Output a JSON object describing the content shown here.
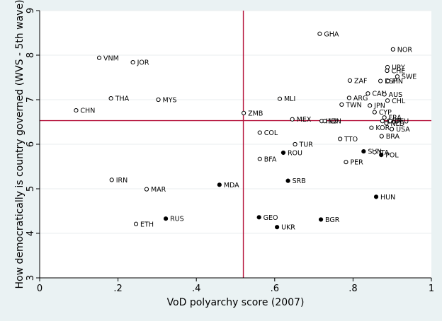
{
  "chart_data": {
    "type": "scatter",
    "title": "",
    "xlabel": "VoD polyarchy score (2007)",
    "ylabel": "How democratically is country governed (WVS - 5th wave)",
    "xlim": [
      0,
      1
    ],
    "ylim": [
      3,
      9
    ],
    "x_ticks": [
      0,
      0.2,
      0.4,
      0.6,
      0.8,
      1
    ],
    "x_tick_labels": [
      "0",
      ".2",
      ".4",
      ".6",
      ".8",
      "1"
    ],
    "y_ticks": [
      3,
      4,
      5,
      6,
      7,
      8,
      9
    ],
    "y_tick_labels": [
      "3",
      "4",
      "5",
      "6",
      "7",
      "8",
      "9"
    ],
    "grid": true,
    "reference_lines": {
      "x": 0.52,
      "y": 6.53
    },
    "ref_line_color": "#b5123a",
    "point_color": "#000000",
    "points": [
      {
        "label": "GHA",
        "x": 0.715,
        "y": 8.48,
        "filled": false
      },
      {
        "label": "NOR",
        "x": 0.902,
        "y": 8.13,
        "filled": false
      },
      {
        "label": "VNM",
        "x": 0.152,
        "y": 7.94,
        "filled": false
      },
      {
        "label": "JOR",
        "x": 0.238,
        "y": 7.84,
        "filled": false
      },
      {
        "label": "URY",
        "x": 0.888,
        "y": 7.73,
        "filled": false
      },
      {
        "label": "CHE",
        "x": 0.887,
        "y": 7.65,
        "filled": false
      },
      {
        "label": "SWE",
        "x": 0.913,
        "y": 7.52,
        "filled": false
      },
      {
        "label": "ZAF",
        "x": 0.792,
        "y": 7.43,
        "filled": false
      },
      {
        "label": "ESP",
        "x": 0.87,
        "y": 7.42,
        "filled": false
      },
      {
        "label": "FIN",
        "x": 0.889,
        "y": 7.42,
        "filled": false
      },
      {
        "label": "CAN",
        "x": 0.838,
        "y": 7.14,
        "filled": false
      },
      {
        "label": "AUS",
        "x": 0.88,
        "y": 7.12,
        "filled": false
      },
      {
        "label": "ARG",
        "x": 0.79,
        "y": 7.04,
        "filled": false
      },
      {
        "label": "THA",
        "x": 0.182,
        "y": 7.03,
        "filled": false
      },
      {
        "label": "MLI",
        "x": 0.613,
        "y": 7.02,
        "filled": false
      },
      {
        "label": "MYS",
        "x": 0.303,
        "y": 7.0,
        "filled": false
      },
      {
        "label": "CHL",
        "x": 0.888,
        "y": 6.98,
        "filled": false
      },
      {
        "label": "TWN",
        "x": 0.771,
        "y": 6.89,
        "filled": false
      },
      {
        "label": "JPN",
        "x": 0.843,
        "y": 6.87,
        "filled": false
      },
      {
        "label": "CHN",
        "x": 0.093,
        "y": 6.76,
        "filled": false
      },
      {
        "label": "CYP",
        "x": 0.855,
        "y": 6.72,
        "filled": false
      },
      {
        "label": "ZMB",
        "x": 0.521,
        "y": 6.7,
        "filled": false
      },
      {
        "label": "FRA",
        "x": 0.88,
        "y": 6.6,
        "filled": false
      },
      {
        "label": "MEX",
        "x": 0.645,
        "y": 6.56,
        "filled": false
      },
      {
        "label": "IND",
        "x": 0.72,
        "y": 6.52,
        "filled": false
      },
      {
        "label": "IDN",
        "x": 0.728,
        "y": 6.52,
        "filled": false
      },
      {
        "label": "GBR",
        "x": 0.875,
        "y": 6.52,
        "filled": false
      },
      {
        "label": "DEU",
        "x": 0.895,
        "y": 6.52,
        "filled": false
      },
      {
        "label": "NLD",
        "x": 0.885,
        "y": 6.47,
        "filled": false
      },
      {
        "label": "KOR",
        "x": 0.847,
        "y": 6.37,
        "filled": false
      },
      {
        "label": "USA",
        "x": 0.899,
        "y": 6.34,
        "filled": false
      },
      {
        "label": "COL",
        "x": 0.562,
        "y": 6.26,
        "filled": false
      },
      {
        "label": "BRA",
        "x": 0.873,
        "y": 6.18,
        "filled": false
      },
      {
        "label": "TTO",
        "x": 0.767,
        "y": 6.12,
        "filled": false
      },
      {
        "label": "TUR",
        "x": 0.652,
        "y": 6.0,
        "filled": false
      },
      {
        "label": "SVN",
        "x": 0.827,
        "y": 5.84,
        "filled": true
      },
      {
        "label": "ITA",
        "x": 0.855,
        "y": 5.82,
        "filled": false
      },
      {
        "label": "ROU",
        "x": 0.622,
        "y": 5.81,
        "filled": true
      },
      {
        "label": "POL",
        "x": 0.872,
        "y": 5.76,
        "filled": true
      },
      {
        "label": "BFA",
        "x": 0.562,
        "y": 5.67,
        "filled": false
      },
      {
        "label": "PER",
        "x": 0.782,
        "y": 5.6,
        "filled": false
      },
      {
        "label": "IRN",
        "x": 0.184,
        "y": 5.2,
        "filled": false
      },
      {
        "label": "SRB",
        "x": 0.634,
        "y": 5.18,
        "filled": true
      },
      {
        "label": "MDA",
        "x": 0.459,
        "y": 5.09,
        "filled": true
      },
      {
        "label": "MAR",
        "x": 0.273,
        "y": 4.99,
        "filled": false
      },
      {
        "label": "HUN",
        "x": 0.859,
        "y": 4.82,
        "filled": true
      },
      {
        "label": "GEO",
        "x": 0.56,
        "y": 4.36,
        "filled": true
      },
      {
        "label": "RUS",
        "x": 0.322,
        "y": 4.33,
        "filled": true
      },
      {
        "label": "BGR",
        "x": 0.718,
        "y": 4.31,
        "filled": true
      },
      {
        "label": "ETH",
        "x": 0.246,
        "y": 4.21,
        "filled": false
      },
      {
        "label": "UKR",
        "x": 0.606,
        "y": 4.14,
        "filled": true
      }
    ]
  }
}
